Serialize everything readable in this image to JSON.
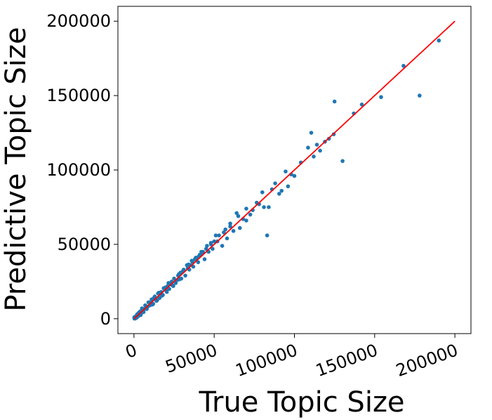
{
  "chart_data": {
    "type": "scatter",
    "title": "",
    "xlabel": "True Topic Size",
    "ylabel": "Predictive Topic Size",
    "xlim": [
      -10000,
      210000
    ],
    "ylim": [
      -10000,
      210000
    ],
    "xticks": [
      0,
      50000,
      100000,
      150000,
      200000
    ],
    "yticks": [
      0,
      50000,
      100000,
      150000,
      200000
    ],
    "xtick_labels": [
      "0",
      "50000",
      "100000",
      "150000",
      "200000"
    ],
    "ytick_labels": [
      "0",
      "50000",
      "100000",
      "150000",
      "200000"
    ],
    "grid": false,
    "point_color": "#1f77b4",
    "line_color": "#ff0000",
    "reference_line": {
      "x": [
        0,
        200000
      ],
      "y": [
        0,
        200000
      ]
    },
    "series": [
      {
        "x": [
          190000,
          168000,
          178000,
          154000,
          142000,
          137000,
          125000,
          124500,
          130000,
          121500,
          119000,
          116000,
          114000,
          112000,
          110500,
          108500,
          104000,
          100000,
          98000,
          96000,
          94500,
          92000,
          90500,
          88000,
          86000,
          83000,
          81000,
          80000,
          78000,
          76500,
          74000,
          72500,
          70000,
          68000,
          66000,
          64000,
          62000,
          60000,
          58000,
          57000,
          55000,
          53000,
          52000,
          50000,
          49000,
          48000,
          46500,
          45000,
          44000,
          42500,
          41000,
          40000,
          38500,
          37000,
          36000,
          34500,
          33000,
          32000,
          30500,
          29500,
          28000,
          27000,
          26000,
          24500,
          23500,
          22000,
          21000,
          20000,
          19000,
          18000,
          17000,
          16000,
          15000,
          14000,
          13000,
          12000,
          11000,
          10000,
          9000,
          8000,
          7000,
          6000,
          5000,
          4000,
          3000,
          2000,
          1000,
          500,
          200,
          70000,
          84000,
          65000,
          60000,
          56000,
          48000,
          42000,
          38000,
          33500,
          29000,
          25000,
          21500,
          18500,
          15500,
          12500,
          9500,
          7500,
          5500,
          3500,
          2500,
          1500,
          31000,
          36500,
          27500,
          23000,
          19500,
          16500,
          13500,
          10500,
          8500,
          6500,
          4500,
          35000,
          40500,
          45500,
          51000,
          43000,
          39000,
          34000,
          28500,
          24000,
          20500,
          17500,
          14500,
          11500,
          8000,
          6000,
          4200,
          2800,
          1800,
          900,
          300
        ],
        "y": [
          187000,
          170000,
          150000,
          149000,
          144000,
          138000,
          146000,
          124000,
          106000,
          121000,
          119000,
          113000,
          117000,
          109000,
          125000,
          115000,
          105000,
          96000,
          97000,
          89000,
          99000,
          86000,
          84000,
          91000,
          87000,
          56000,
          75000,
          85000,
          77000,
          78000,
          73000,
          70000,
          74000,
          67000,
          61000,
          71000,
          59000,
          64000,
          54000,
          60000,
          49000,
          56000,
          52000,
          52000,
          47000,
          50000,
          45000,
          47000,
          40000,
          44000,
          43000,
          38000,
          41000,
          35000,
          39000,
          33000,
          36000,
          29000,
          32000,
          27000,
          30000,
          26000,
          24000,
          22000,
          25000,
          20000,
          22000,
          19000,
          20000,
          16000,
          18000,
          14000,
          17000,
          12000,
          15000,
          10000,
          13000,
          9000,
          11000,
          8000,
          9000,
          6000,
          7000,
          5000,
          4000,
          3000,
          1500,
          500,
          1000,
          66000,
          75000,
          69000,
          62000,
          58000,
          51000,
          45000,
          40000,
          34000,
          31000,
          27000,
          24000,
          20500,
          17500,
          14000,
          11000,
          8500,
          6500,
          4500,
          3200,
          2000,
          33000,
          38000,
          29000,
          23000,
          21000,
          17000,
          13500,
          11000,
          8000,
          6500,
          3500,
          36000,
          42000,
          49000,
          56000,
          45000,
          41000,
          36500,
          26500,
          22500,
          18000,
          15500,
          12500,
          9500,
          6500,
          4500,
          2500,
          1800,
          800,
          200,
          100
        ]
      }
    ]
  }
}
